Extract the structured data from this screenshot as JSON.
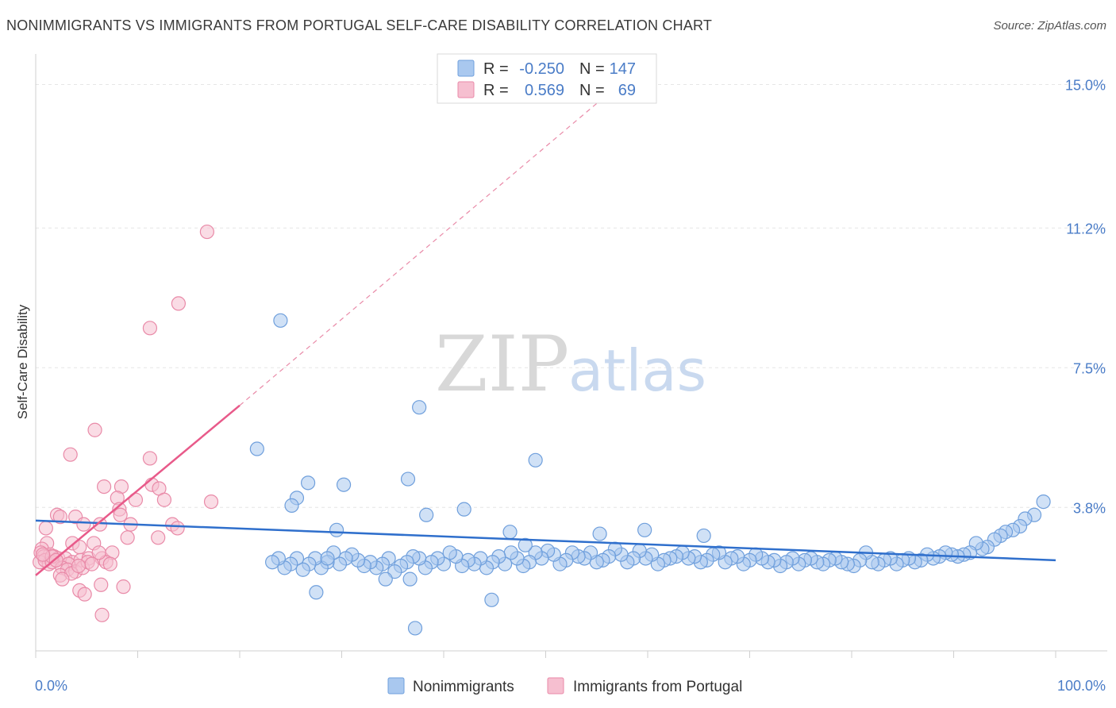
{
  "title": "NONIMMIGRANTS VS IMMIGRANTS FROM PORTUGAL SELF-CARE DISABILITY CORRELATION CHART",
  "source": "Source: ZipAtlas.com",
  "watermark": {
    "zip": "ZIP",
    "atlas": "atlas"
  },
  "colors": {
    "blue_fill": "#a9c8ef",
    "blue_stroke": "#6f9fdc",
    "blue_line": "#2f6fcc",
    "pink_fill": "#f6bfd0",
    "pink_stroke": "#e98aa8",
    "pink_line": "#e85a8a",
    "grid": "#e6e6e6",
    "axis_text": "#4a7cc7"
  },
  "legend": {
    "rows": [
      {
        "r_label": "R =",
        "r_value": "-0.250",
        "n_label": "N =",
        "n_value": "147"
      },
      {
        "r_label": "R =",
        "r_value": "0.569",
        "n_label": "N =",
        "n_value": "69"
      }
    ]
  },
  "bottom_legend": [
    "Nonimmigrants",
    "Immigrants from Portugal"
  ],
  "chart_data": {
    "type": "scatter",
    "title": "NONIMMIGRANTS VS IMMIGRANTS FROM PORTUGAL SELF-CARE DISABILITY CORRELATION CHART",
    "xlabel": "",
    "ylabel": "Self-Care Disability",
    "xlim": [
      0,
      100
    ],
    "ylim": [
      0,
      15.6
    ],
    "x_tick_labels": [
      "0.0%",
      "100.0%"
    ],
    "y_ticks": [
      3.8,
      7.5,
      11.2,
      15.0
    ],
    "y_tick_labels": [
      "3.8%",
      "7.5%",
      "11.2%",
      "15.0%"
    ],
    "grid": true,
    "legend_position": "top-center",
    "series": [
      {
        "name": "Nonimmigrants",
        "r": -0.25,
        "n": 147,
        "trend": {
          "x": [
            0,
            100
          ],
          "y": [
            3.45,
            2.4
          ]
        },
        "points": [
          [
            24.0,
            8.75
          ],
          [
            37.6,
            6.45
          ],
          [
            21.7,
            5.35
          ],
          [
            49.0,
            5.05
          ],
          [
            26.7,
            4.45
          ],
          [
            36.5,
            4.55
          ],
          [
            30.2,
            4.4
          ],
          [
            25.6,
            4.05
          ],
          [
            25.1,
            3.85
          ],
          [
            42.0,
            3.75
          ],
          [
            98.8,
            3.95
          ],
          [
            97.9,
            3.6
          ],
          [
            97.0,
            3.5
          ],
          [
            96.5,
            3.3
          ],
          [
            95.8,
            3.2
          ],
          [
            95.1,
            3.15
          ],
          [
            94.6,
            3.05
          ],
          [
            94.0,
            2.95
          ],
          [
            93.3,
            2.75
          ],
          [
            92.8,
            2.7
          ],
          [
            92.2,
            2.85
          ],
          [
            91.6,
            2.6
          ],
          [
            91.0,
            2.55
          ],
          [
            90.4,
            2.5
          ],
          [
            89.8,
            2.55
          ],
          [
            89.2,
            2.6
          ],
          [
            88.6,
            2.5
          ],
          [
            88.0,
            2.45
          ],
          [
            87.4,
            2.55
          ],
          [
            86.8,
            2.4
          ],
          [
            86.2,
            2.35
          ],
          [
            85.6,
            2.45
          ],
          [
            85.0,
            2.4
          ],
          [
            84.4,
            2.3
          ],
          [
            83.8,
            2.45
          ],
          [
            83.2,
            2.4
          ],
          [
            82.6,
            2.3
          ],
          [
            82.0,
            2.35
          ],
          [
            81.4,
            2.6
          ],
          [
            80.8,
            2.4
          ],
          [
            80.2,
            2.25
          ],
          [
            79.6,
            2.3
          ],
          [
            79.0,
            2.35
          ],
          [
            78.4,
            2.45
          ],
          [
            77.8,
            2.4
          ],
          [
            77.2,
            2.3
          ],
          [
            76.6,
            2.35
          ],
          [
            76.0,
            2.45
          ],
          [
            75.4,
            2.4
          ],
          [
            74.8,
            2.3
          ],
          [
            74.2,
            2.45
          ],
          [
            73.6,
            2.35
          ],
          [
            73.0,
            2.25
          ],
          [
            72.4,
            2.4
          ],
          [
            71.8,
            2.35
          ],
          [
            71.2,
            2.45
          ],
          [
            70.6,
            2.55
          ],
          [
            70.0,
            2.4
          ],
          [
            69.4,
            2.3
          ],
          [
            68.8,
            2.5
          ],
          [
            68.2,
            2.45
          ],
          [
            67.6,
            2.35
          ],
          [
            67.0,
            2.6
          ],
          [
            66.4,
            2.55
          ],
          [
            65.8,
            2.4
          ],
          [
            65.2,
            2.35
          ],
          [
            64.6,
            2.5
          ],
          [
            64.0,
            2.45
          ],
          [
            63.4,
            2.6
          ],
          [
            62.8,
            2.5
          ],
          [
            62.2,
            2.45
          ],
          [
            61.6,
            2.4
          ],
          [
            61.0,
            2.3
          ],
          [
            60.4,
            2.55
          ],
          [
            59.8,
            2.45
          ],
          [
            59.2,
            2.65
          ],
          [
            58.6,
            2.45
          ],
          [
            58.0,
            2.35
          ],
          [
            57.4,
            2.55
          ],
          [
            56.8,
            2.7
          ],
          [
            56.2,
            2.5
          ],
          [
            55.6,
            2.4
          ],
          [
            55.0,
            2.35
          ],
          [
            54.4,
            2.6
          ],
          [
            53.8,
            2.45
          ],
          [
            53.2,
            2.5
          ],
          [
            52.6,
            2.6
          ],
          [
            52.0,
            2.4
          ],
          [
            51.4,
            2.3
          ],
          [
            50.8,
            2.55
          ],
          [
            50.2,
            2.65
          ],
          [
            49.6,
            2.45
          ],
          [
            49.0,
            2.6
          ],
          [
            48.4,
            2.35
          ],
          [
            47.8,
            2.25
          ],
          [
            47.2,
            2.45
          ],
          [
            46.6,
            2.6
          ],
          [
            46.0,
            2.3
          ],
          [
            45.4,
            2.5
          ],
          [
            44.8,
            2.35
          ],
          [
            44.2,
            2.2
          ],
          [
            43.6,
            2.45
          ],
          [
            43.0,
            2.3
          ],
          [
            42.4,
            2.4
          ],
          [
            41.8,
            2.25
          ],
          [
            41.2,
            2.5
          ],
          [
            40.6,
            2.6
          ],
          [
            40.0,
            2.3
          ],
          [
            39.4,
            2.45
          ],
          [
            38.8,
            2.35
          ],
          [
            38.2,
            2.2
          ],
          [
            37.6,
            2.45
          ],
          [
            37.0,
            2.5
          ],
          [
            36.4,
            2.35
          ],
          [
            35.8,
            2.25
          ],
          [
            35.2,
            2.1
          ],
          [
            34.6,
            2.45
          ],
          [
            34.0,
            2.3
          ],
          [
            33.4,
            2.2
          ],
          [
            32.8,
            2.35
          ],
          [
            32.2,
            2.25
          ],
          [
            31.6,
            2.4
          ],
          [
            31.0,
            2.55
          ],
          [
            30.4,
            2.45
          ],
          [
            29.8,
            2.3
          ],
          [
            29.2,
            2.6
          ],
          [
            28.6,
            2.35
          ],
          [
            28.0,
            2.2
          ],
          [
            27.4,
            2.45
          ],
          [
            26.8,
            2.3
          ],
          [
            26.2,
            2.15
          ],
          [
            25.6,
            2.45
          ],
          [
            25.0,
            2.3
          ],
          [
            24.4,
            2.2
          ],
          [
            23.8,
            2.45
          ],
          [
            23.2,
            2.35
          ],
          [
            38.3,
            3.6
          ],
          [
            29.5,
            3.2
          ],
          [
            46.5,
            3.15
          ],
          [
            59.7,
            3.2
          ],
          [
            65.5,
            3.05
          ],
          [
            55.3,
            3.1
          ],
          [
            27.5,
            1.55
          ],
          [
            37.2,
            0.6
          ],
          [
            44.7,
            1.35
          ],
          [
            36.7,
            1.9
          ],
          [
            34.3,
            1.9
          ],
          [
            28.6,
            2.45
          ],
          [
            48.0,
            2.8
          ]
        ]
      },
      {
        "name": "Immigrants from Portugal",
        "r": 0.569,
        "n": 69,
        "trend": {
          "x": [
            0,
            20
          ],
          "y": [
            2.0,
            6.5
          ]
        },
        "trend_extended": {
          "x": [
            20,
            55
          ],
          "y": [
            6.5,
            14.5
          ]
        },
        "points": [
          [
            16.8,
            11.1
          ],
          [
            14.0,
            9.2
          ],
          [
            11.2,
            8.55
          ],
          [
            5.8,
            5.85
          ],
          [
            3.4,
            5.2
          ],
          [
            11.2,
            5.1
          ],
          [
            6.7,
            4.35
          ],
          [
            8.4,
            4.35
          ],
          [
            11.4,
            4.4
          ],
          [
            12.1,
            4.3
          ],
          [
            8.0,
            4.05
          ],
          [
            9.8,
            4.0
          ],
          [
            12.6,
            4.0
          ],
          [
            17.2,
            3.95
          ],
          [
            8.2,
            3.75
          ],
          [
            2.1,
            3.6
          ],
          [
            2.4,
            3.55
          ],
          [
            3.9,
            3.55
          ],
          [
            8.3,
            3.6
          ],
          [
            6.3,
            3.35
          ],
          [
            4.7,
            3.35
          ],
          [
            9.3,
            3.35
          ],
          [
            13.4,
            3.35
          ],
          [
            13.9,
            3.25
          ],
          [
            1.0,
            3.25
          ],
          [
            9.0,
            3.0
          ],
          [
            12.0,
            3.0
          ],
          [
            5.7,
            2.85
          ],
          [
            3.6,
            2.85
          ],
          [
            4.3,
            2.75
          ],
          [
            1.1,
            2.85
          ],
          [
            0.6,
            2.7
          ],
          [
            0.5,
            2.6
          ],
          [
            1.4,
            2.55
          ],
          [
            0.8,
            2.5
          ],
          [
            1.8,
            2.5
          ],
          [
            2.2,
            2.45
          ],
          [
            2.9,
            2.45
          ],
          [
            3.6,
            2.35
          ],
          [
            4.4,
            2.4
          ],
          [
            5.2,
            2.45
          ],
          [
            6.5,
            2.45
          ],
          [
            7.5,
            2.6
          ],
          [
            3.2,
            2.3
          ],
          [
            0.4,
            2.35
          ],
          [
            1.3,
            2.3
          ],
          [
            0.9,
            2.4
          ],
          [
            1.6,
            2.35
          ],
          [
            2.6,
            2.2
          ],
          [
            3.1,
            2.15
          ],
          [
            3.9,
            2.1
          ],
          [
            4.6,
            2.2
          ],
          [
            5.1,
            2.35
          ],
          [
            6.9,
            2.35
          ],
          [
            7.3,
            2.3
          ],
          [
            2.4,
            2.0
          ],
          [
            3.5,
            2.05
          ],
          [
            4.2,
            2.25
          ],
          [
            5.5,
            2.3
          ],
          [
            6.2,
            2.6
          ],
          [
            2.6,
            1.9
          ],
          [
            4.3,
            1.6
          ],
          [
            4.8,
            1.5
          ],
          [
            6.4,
            1.75
          ],
          [
            8.6,
            1.7
          ],
          [
            6.5,
            0.95
          ],
          [
            1.6,
            2.5
          ],
          [
            0.7,
            2.55
          ],
          [
            2.0,
            2.4
          ]
        ]
      }
    ]
  }
}
